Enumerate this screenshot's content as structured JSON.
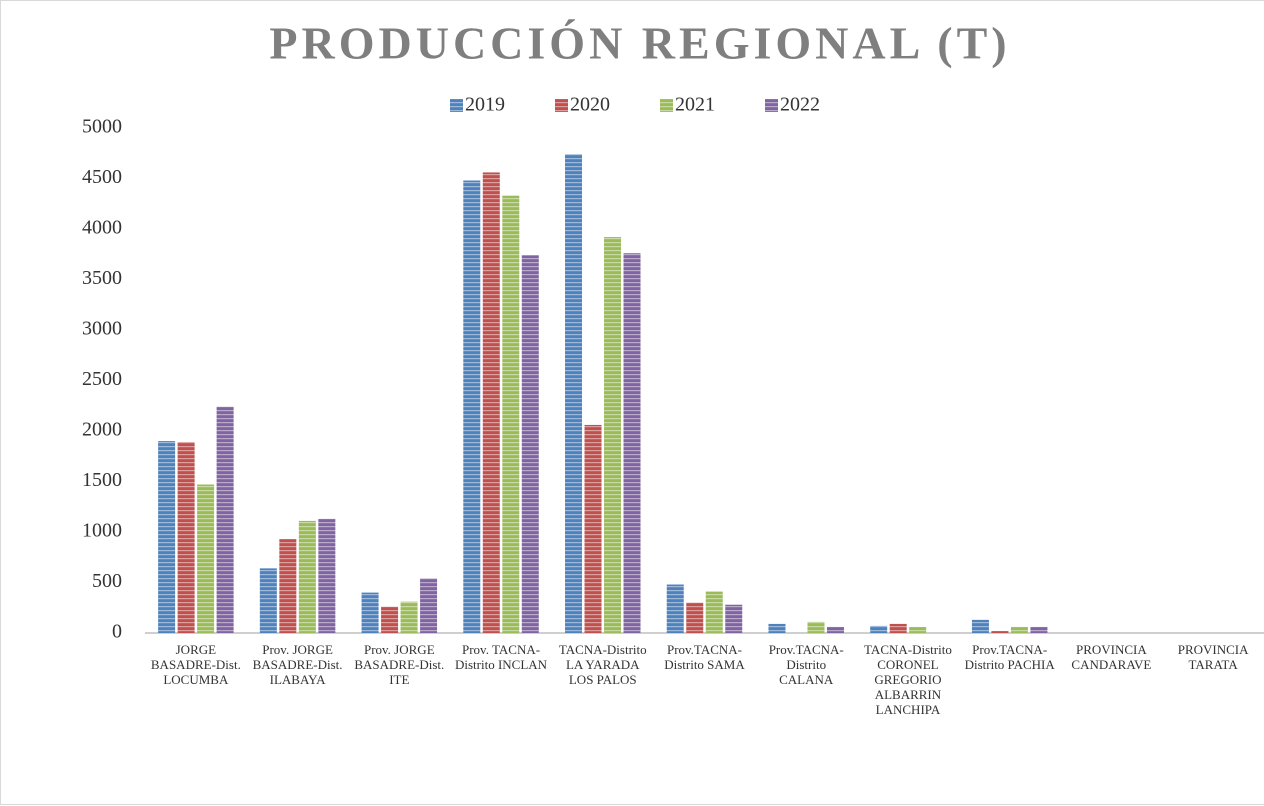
{
  "chart_data": {
    "type": "bar",
    "title": "PRODUCCIÓN REGIONAL (T)",
    "categories": [
      "JORGE BASADRE-Dist. LOCUMBA",
      "Prov. JORGE BASADRE-Dist. ILABAYA",
      "Prov. JORGE BASADRE-Dist. ITE",
      "Prov. TACNA-Distrito INCLAN",
      "TACNA-Distrito LA YARADA LOS PALOS",
      "Prov.TACNA-Distrito SAMA",
      "Prov.TACNA-Distrito CALANA",
      "TACNA-Distrito CORONEL GREGORIO ALBARRIN LANCHIPA",
      "Prov.TACNA-Distrito PACHIA",
      "PROVINCIA CANDARAVE",
      "PROVINCIA TARATA"
    ],
    "series": [
      {
        "name": "2019",
        "color": "#4f81bd",
        "values": [
          1900,
          640,
          400,
          4480,
          4740,
          480,
          90,
          70,
          130,
          0,
          0
        ]
      },
      {
        "name": "2020",
        "color": "#c0504d",
        "values": [
          1890,
          930,
          260,
          4560,
          2060,
          300,
          0,
          90,
          20,
          0,
          0
        ]
      },
      {
        "name": "2021",
        "color": "#9bbb59",
        "values": [
          1470,
          1110,
          310,
          4330,
          3920,
          410,
          110,
          60,
          60,
          0,
          0
        ]
      },
      {
        "name": "2022",
        "color": "#8064a2",
        "values": [
          2240,
          1130,
          540,
          3740,
          3760,
          280,
          60,
          0,
          60,
          0,
          0
        ]
      }
    ],
    "ylim": [
      0,
      5000
    ],
    "yticks": [
      0,
      500,
      1000,
      1500,
      2000,
      2500,
      3000,
      3500,
      4000,
      4500,
      5000
    ],
    "grid": false,
    "legend": "top"
  }
}
